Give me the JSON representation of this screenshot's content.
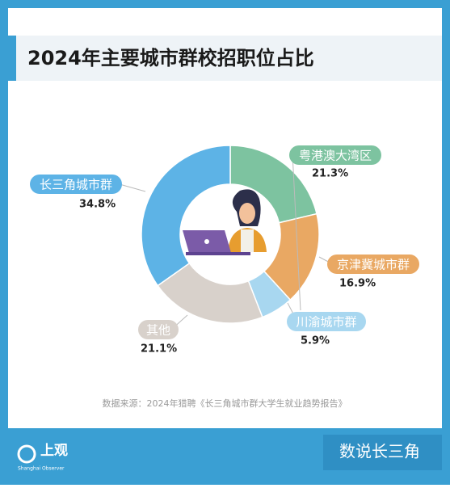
{
  "chart_data": {
    "type": "donut",
    "title": "2024年主要城市群校招职位占比",
    "categories": [
      "粤港澳大湾区",
      "京津冀城市群",
      "川渝城市群",
      "其他",
      "长三角城市群"
    ],
    "values": [
      21.3,
      16.9,
      5.9,
      21.1,
      34.8
    ],
    "value_labels": [
      "21.3%",
      "16.9%",
      "5.9%",
      "21.1%",
      "34.8%"
    ],
    "colors": [
      "#7dc3a0",
      "#e9a863",
      "#a8d7f0",
      "#d8d1cb",
      "#5db3e6"
    ],
    "source": "数据来源：2024年猎聘《长三角城市群大学生就业趋势报告》"
  },
  "branding": {
    "logo": "上观",
    "logo_sub": "Shanghai Observer",
    "column": "数说长三角"
  }
}
